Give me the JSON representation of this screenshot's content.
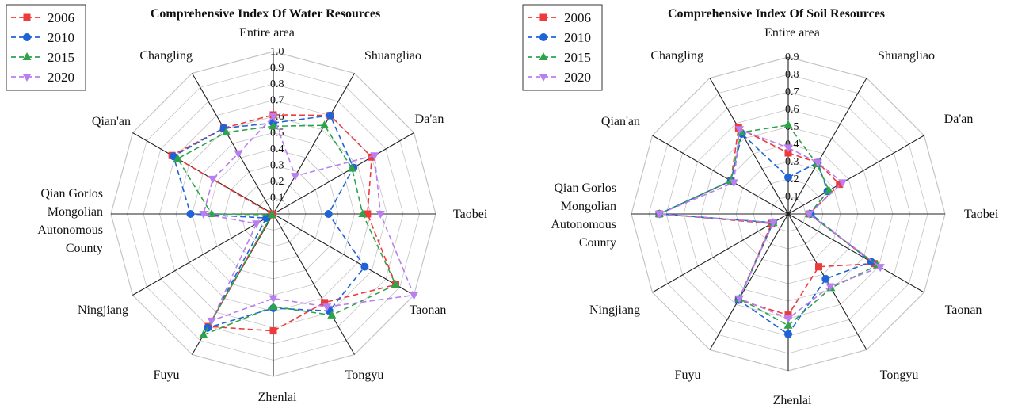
{
  "chart_data": [
    {
      "type": "radar",
      "title": "Comprehensive Index Of Water Resources",
      "axes": [
        "Entire area",
        "Shuangliao",
        "Da'an",
        "Taobei",
        "Taonan",
        "Tongyu",
        "Zhenlai",
        "Fuyu",
        "Ningjiang",
        "Qian Gorlos Mongolian Autonomous County",
        "Qian'an",
        "Changling"
      ],
      "axis_label_lines": [
        [
          "Entire area"
        ],
        [
          "Shuangliao"
        ],
        [
          "Da'an"
        ],
        [
          "Taobei"
        ],
        [
          "Taonan"
        ],
        [
          "Tongyu"
        ],
        [
          "Zhenlai"
        ],
        [
          "Fuyu"
        ],
        [
          "Ningjiang"
        ],
        [
          "Qian Gorlos",
          "Mongolian",
          "Autonomous",
          "County"
        ],
        [
          "Qian'an"
        ],
        [
          "Changling"
        ]
      ],
      "rmax": 1.0,
      "ticks": [
        "0.1",
        "0.2",
        "0.3",
        "0.4",
        "0.5",
        "0.6",
        "0.7",
        "0.8",
        "0.9",
        "1.0"
      ],
      "series": [
        {
          "name": "2006",
          "values": [
            0.61,
            0.7,
            0.7,
            0.58,
            0.87,
            0.63,
            0.72,
            0.8,
            0.01,
            0.01,
            0.72,
            0.61
          ]
        },
        {
          "name": "2010",
          "values": [
            0.56,
            0.7,
            0.57,
            0.34,
            0.65,
            0.69,
            0.58,
            0.81,
            0.05,
            0.51,
            0.71,
            0.61
          ]
        },
        {
          "name": "2015",
          "values": [
            0.54,
            0.63,
            0.56,
            0.55,
            0.87,
            0.72,
            0.57,
            0.86,
            0.01,
            0.38,
            0.68,
            0.58
          ]
        },
        {
          "name": "2020",
          "values": [
            0.6,
            0.27,
            0.72,
            0.66,
            1.0,
            0.66,
            0.52,
            0.76,
            0.12,
            0.43,
            0.43,
            0.43
          ]
        }
      ],
      "legend_position": "top-left",
      "grid": true
    },
    {
      "type": "radar",
      "title": "Comprehensive Index Of Soil Resources",
      "axes": [
        "Entire area",
        "Shuangliao",
        "Da'an",
        "Taobei",
        "Taonan",
        "Tongyu",
        "Zhenlai",
        "Fuyu",
        "Ningjiang",
        "Qian Gorlos Mongolian Autonomous County",
        "Qian'an",
        "Changling"
      ],
      "axis_label_lines": [
        [
          "Entire area"
        ],
        [
          "Shuangliao"
        ],
        [
          "Da'an"
        ],
        [
          "Taobei"
        ],
        [
          "Taonan"
        ],
        [
          "Tongyu"
        ],
        [
          "Zhenlai"
        ],
        [
          "Fuyu"
        ],
        [
          "Ningjiang"
        ],
        [
          "Qian Gorlos",
          "Mongolian",
          "Autonomous",
          "County"
        ],
        [
          "Qian'an"
        ],
        [
          "Changling"
        ]
      ],
      "rmax": 0.9,
      "ticks": [
        "0.1",
        "0.2",
        "0.3",
        "0.4",
        "0.5",
        "0.6",
        "0.7",
        "0.8",
        "0.9"
      ],
      "series": [
        {
          "name": "2006",
          "values": [
            0.35,
            0.34,
            0.34,
            0.12,
            0.57,
            0.35,
            0.58,
            0.57,
            0.11,
            0.74,
            0.38,
            0.57
          ]
        },
        {
          "name": "2010",
          "values": [
            0.21,
            0.34,
            0.26,
            0.13,
            0.55,
            0.43,
            0.69,
            0.57,
            0.1,
            0.74,
            0.38,
            0.53
          ]
        },
        {
          "name": "2015",
          "values": [
            0.51,
            0.33,
            0.27,
            0.12,
            0.59,
            0.49,
            0.64,
            0.56,
            0.1,
            0.74,
            0.38,
            0.54
          ]
        },
        {
          "name": "2020",
          "values": [
            0.38,
            0.34,
            0.36,
            0.12,
            0.61,
            0.48,
            0.6,
            0.56,
            0.1,
            0.74,
            0.36,
            0.56
          ]
        }
      ],
      "legend_position": "top-left",
      "grid": true
    }
  ],
  "style": {
    "series_colors": [
      "#ee3a3a",
      "#1f63d6",
      "#2ea34a",
      "#b97ef0"
    ],
    "series_markers": [
      "square",
      "circle",
      "triangle-up",
      "triangle-down"
    ],
    "grid_color": "#c4c4c4",
    "spoke_color": "#222222"
  }
}
